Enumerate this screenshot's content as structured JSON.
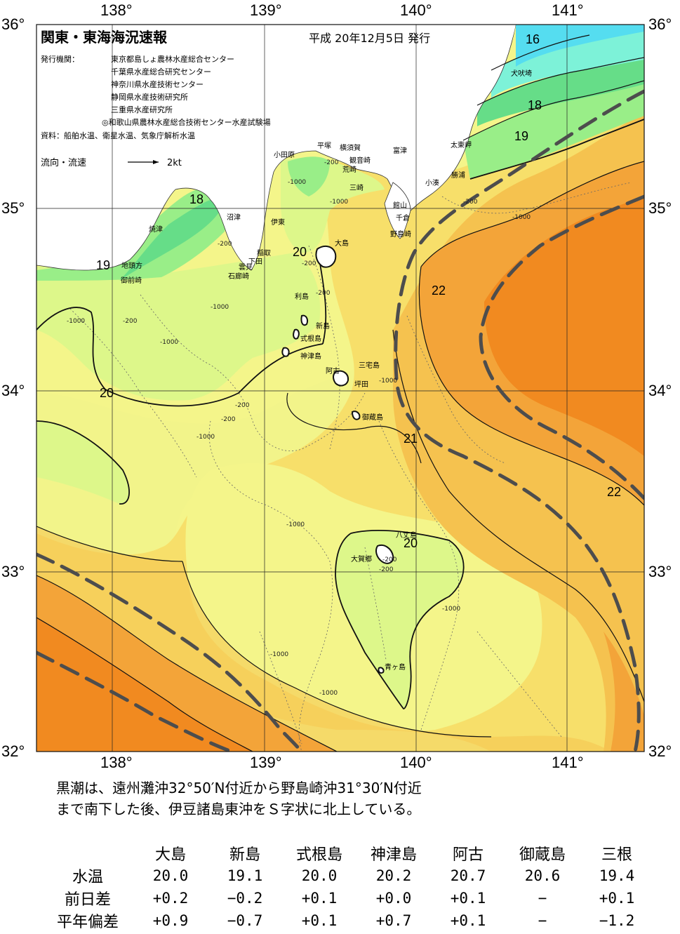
{
  "header": {
    "title": "関東・東海海況速報",
    "date": "平成 20年12月5日 発行",
    "issuer_label": "発行機関：",
    "issuers": [
      "東京都島しょ農林水産総合センター",
      "千葉県水産総合研究センター",
      "神奈川県水産技術センター",
      "静岡県水産技術研究所",
      "三重県水産研究所",
      "◎和歌山県農林水産総合技術センター水産試験場"
    ],
    "source": "資料：船舶水温、衛星水温、気象庁解析水温",
    "current_legend": "流向・流速",
    "current_scale": "2kt"
  },
  "axes": {
    "lon_labels": [
      "138°",
      "139°",
      "140°",
      "141°"
    ],
    "lat_labels": [
      "36°",
      "35°",
      "34°",
      "33°",
      "32°"
    ]
  },
  "isotherm_labels": [
    "16",
    "18",
    "19",
    "18",
    "19",
    "20",
    "20",
    "21",
    "22",
    "22",
    "20"
  ],
  "depth_labels": [
    "-200",
    "-200",
    "-1000",
    "-200",
    "-1000",
    "-1000",
    "-200",
    "-1000",
    "-200",
    "-200",
    "-1000",
    "-200",
    "-1000",
    "-200",
    "-1000",
    "-1000",
    "-1000",
    "-1000",
    "-1000",
    "-200",
    "-1000",
    "-200"
  ],
  "places": [
    "犬吠埼",
    "太東岬",
    "勝浦",
    "小湊",
    "館山",
    "千倉",
    "野島崎",
    "富津",
    "横須賀",
    "平塚",
    "小田原",
    "観音崎",
    "荒崎",
    "三崎",
    "沼津",
    "伊東",
    "焼津",
    "稲取",
    "下田",
    "雲見",
    "石廊崎",
    "地頭方",
    "御前崎",
    "大島",
    "利島",
    "新島",
    "式根島",
    "神津島",
    "阿古",
    "三宅島",
    "坪田",
    "御蔵島",
    "八丈島",
    "大賀郷",
    "青ヶ島"
  ],
  "summary": [
    "黒潮は、遠州灘沖32°50′N付近から野島崎沖31°30′N付近",
    "まで南下した後、伊豆諸島東沖をＳ字状に北上している。"
  ],
  "stats": {
    "columns": [
      "大島",
      "新島",
      "式根島",
      "神津島",
      "阿古",
      "御蔵島",
      "三根"
    ],
    "rows": [
      {
        "label": "水温",
        "values": [
          "20.0",
          "19.1",
          "20.0",
          "20.2",
          "20.7",
          "20.6",
          "19.4"
        ]
      },
      {
        "label": "前日差",
        "values": [
          "+0.2",
          "−0.2",
          "+0.1",
          "+0.0",
          "+0.1",
          "−",
          "+0.1"
        ]
      },
      {
        "label": "平年偏差",
        "values": [
          "+0.9",
          "−0.7",
          "+0.1",
          "+0.7",
          "+0.1",
          "−",
          "−1.2"
        ]
      }
    ]
  },
  "colors": {
    "c16": "#55ddf0",
    "c17": "#7df2d8",
    "c18": "#66dd88",
    "c19": "#99ee88",
    "c20": "#ddf78a",
    "c20b": "#f4f58a",
    "c21": "#f7df6a",
    "c21b": "#f5c24f",
    "c22": "#f3a439",
    "c23": "#f18a20",
    "land": "#ffffff",
    "bay": "#5ad2f2",
    "kuroshio": "#4d4d4d"
  }
}
